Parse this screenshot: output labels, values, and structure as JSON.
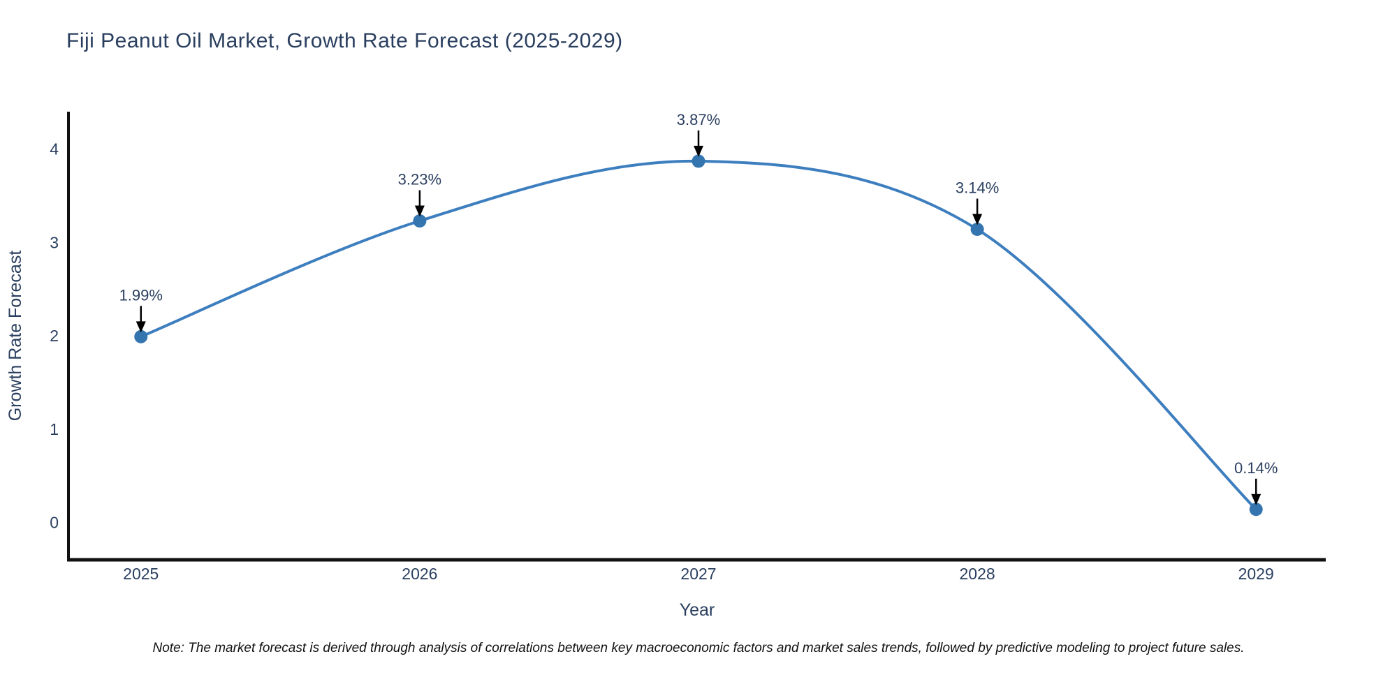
{
  "header": {
    "title": "Fiji Peanut Oil Market, Growth Rate Forecast (2025-2029)"
  },
  "footer": {
    "note": "Note: The market forecast is derived through analysis of correlations between key macroeconomic factors and market sales trends, followed by predictive modeling to project future sales."
  },
  "chart_data": {
    "type": "line",
    "title": "Fiji Peanut Oil Market, Growth Rate Forecast (2025-2029)",
    "xlabel": "Year",
    "ylabel": "Growth Rate Forecast",
    "categories": [
      "2025",
      "2026",
      "2027",
      "2028",
      "2029"
    ],
    "x": [
      2025,
      2026,
      2027,
      2028,
      2029
    ],
    "values": [
      1.99,
      3.23,
      3.87,
      3.14,
      0.14
    ],
    "point_labels": [
      "1.99%",
      "3.23%",
      "3.87%",
      "3.14%",
      "0.14%"
    ],
    "yticks": [
      0,
      1,
      2,
      3,
      4
    ],
    "xlim": [
      2024.74,
      2029.25
    ],
    "ylim": [
      -0.4,
      4.4
    ],
    "grid": false,
    "legend_position": "none",
    "smooth_spline": true,
    "colors": {
      "line": "#3d7ebf",
      "marker": "#3474af",
      "axis": "#111111",
      "text": "#2a3f5f",
      "annotation_text": "#2a3f5f",
      "annotation_arrow": "#000000"
    }
  }
}
